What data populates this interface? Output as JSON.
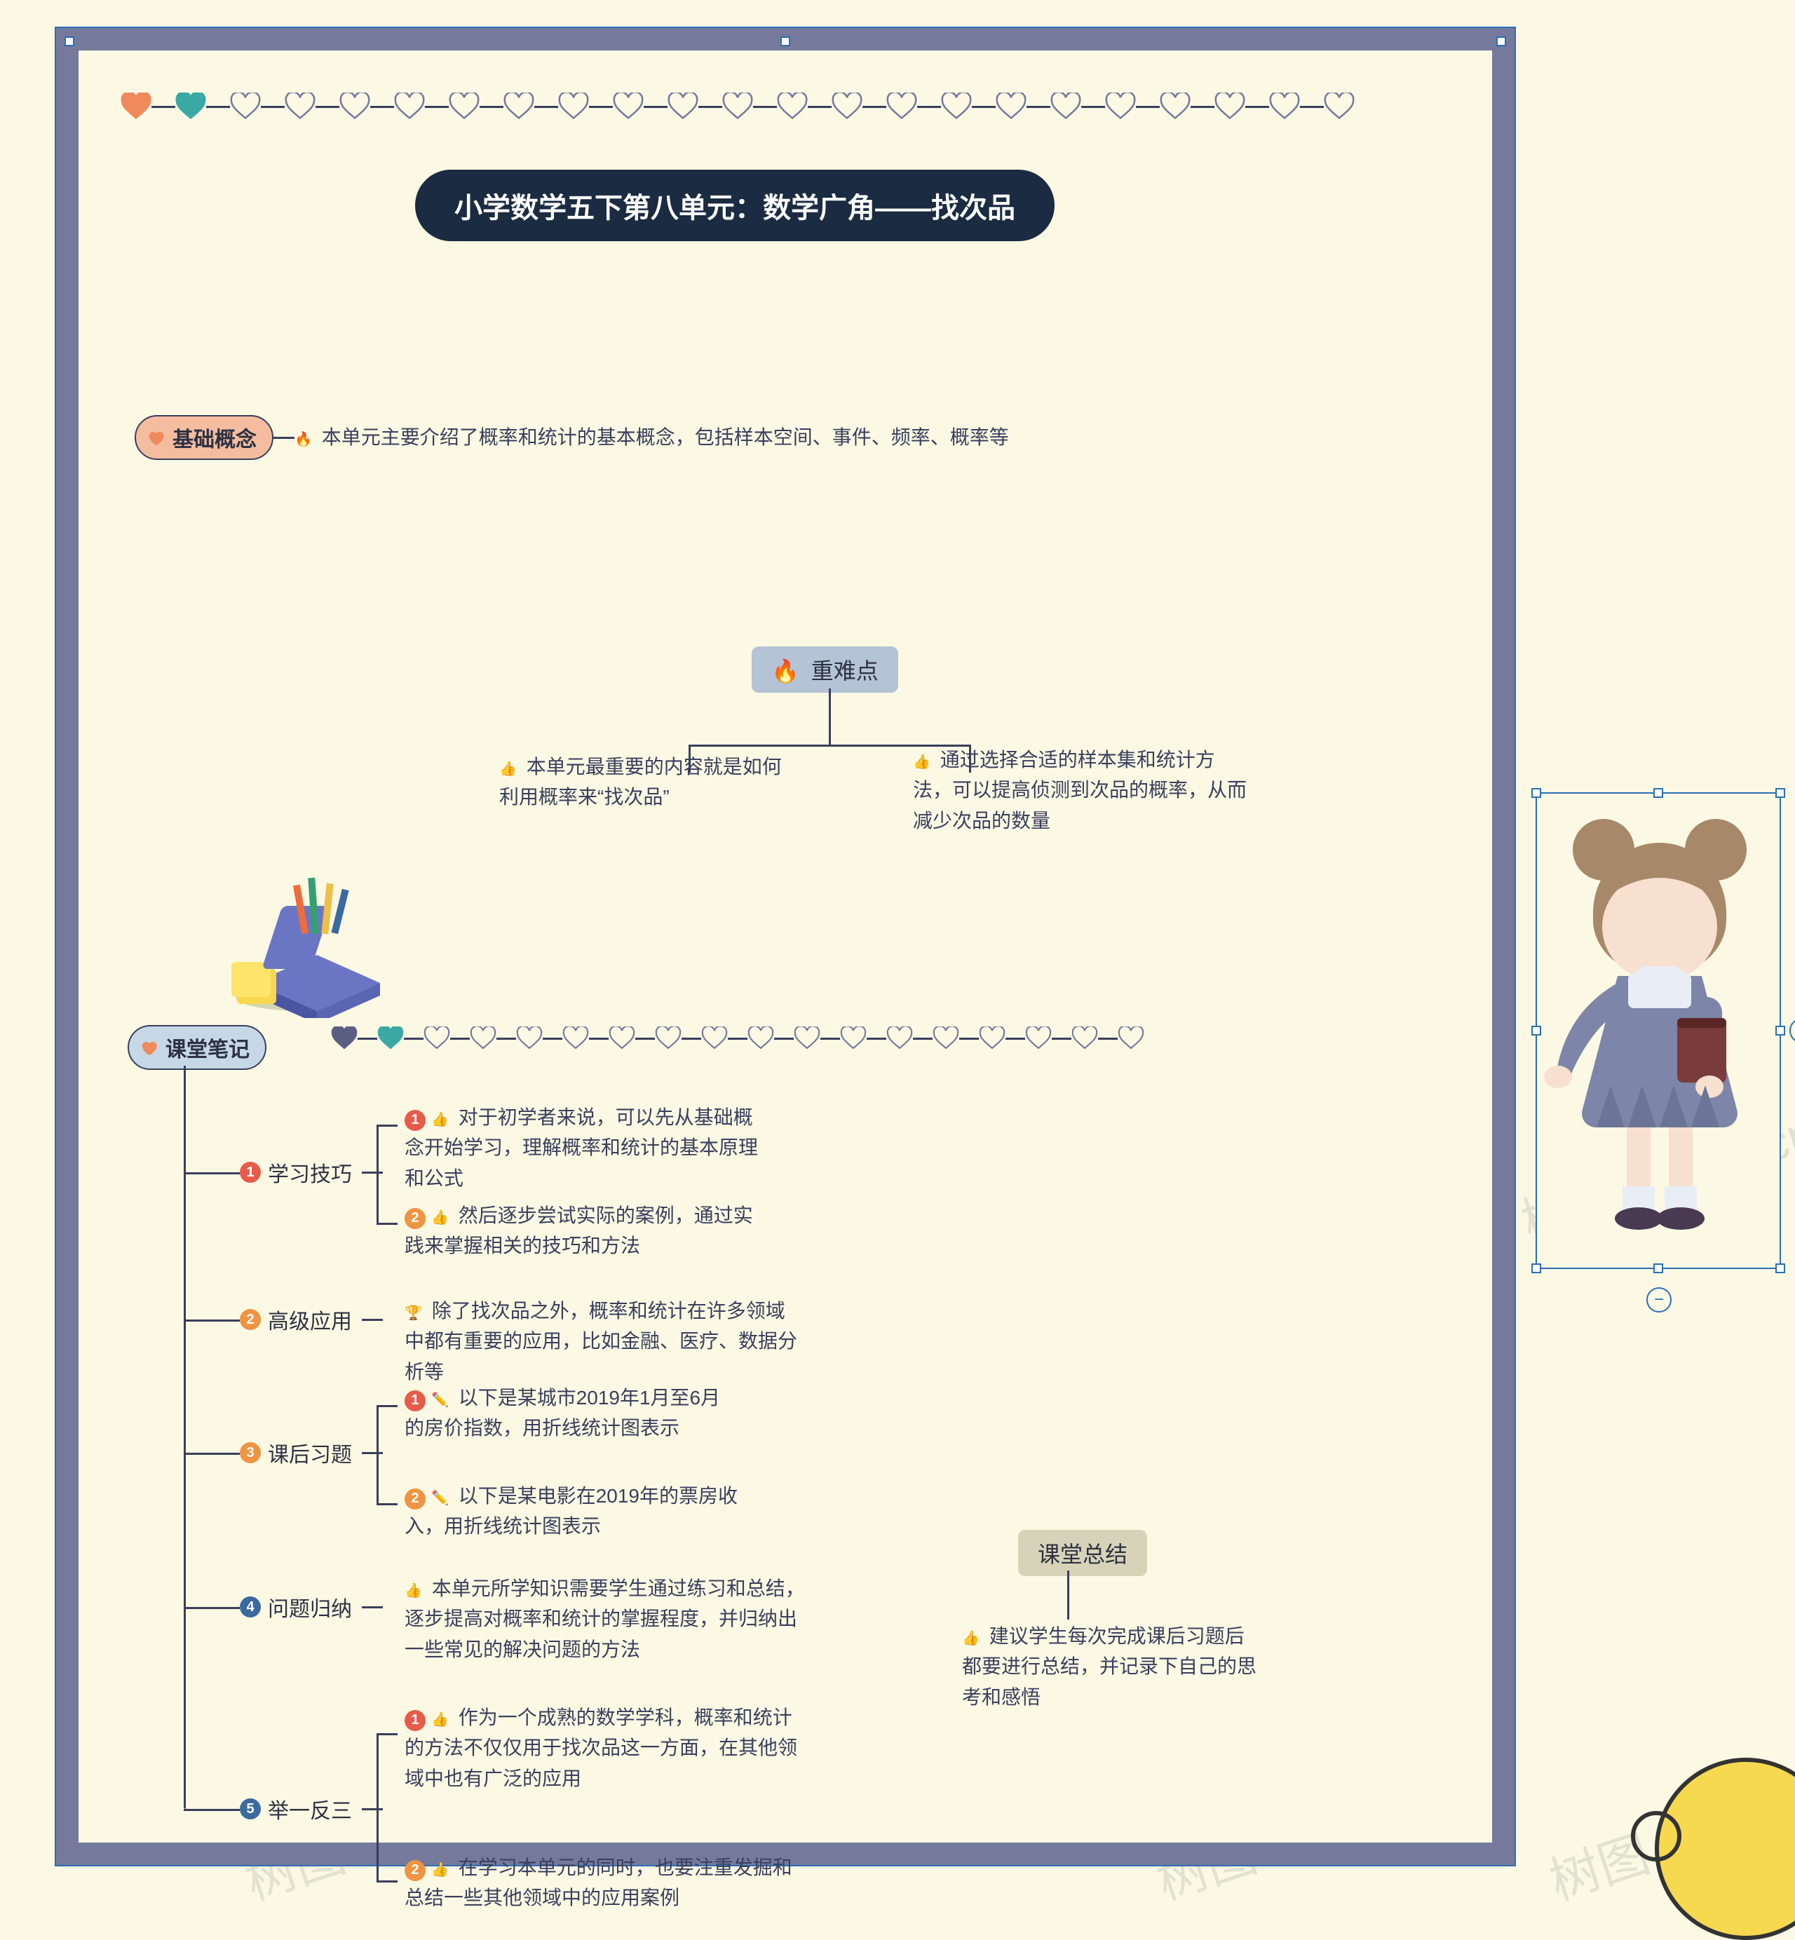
{
  "colors": {
    "page_bg": "#fbf9e4",
    "frame": "#757a9c",
    "stroke": "#3a3f5c",
    "selection": "#2a6fb5",
    "title_bg": "#1a2b42",
    "title_fg": "#ffffff",
    "pill_orange": "#f4bda0",
    "pill_blue": "#c6d8e6",
    "pill_blue2": "#bcd3df",
    "tile_blue": "#b4c3d6",
    "tile_olive": "#d6d3b9",
    "heart_fill": "#fbf9e4",
    "heart_outline": "#757a9c",
    "heart_orange": "#f08a5d",
    "heart_teal": "#3aa9a4",
    "heart_navy": "#5a5f82",
    "badge_red": "#e85b4a",
    "badge_orange": "#ef9442",
    "badge_blue": "#3b6aa0",
    "thumb": "#f6c38a",
    "flame": "#ef6b3a",
    "trophy": "#efbf49",
    "pencil": "#efbf49",
    "corner_yellow": "#f6d94f"
  },
  "watermark_text": "树图 shutu.cn",
  "title": "小学数学五下第八单元：数学广角——找次品",
  "sections": {
    "basic": {
      "label": "基础概念",
      "leaf": "本单元主要介绍了概率和统计的基本概念，包括样本空间、事件、频率、概率等"
    },
    "keypoints": {
      "label": "重难点",
      "left": "本单元最重要的内容就是如何利用概率来“找次品”",
      "right": "通过选择合适的样本集和统计方法，可以提高侦测到次品的概率，从而减少次品的数量"
    },
    "notes_label": "课堂笔记",
    "study": {
      "label": "学习技巧",
      "items": [
        "对于初学者来说，可以先从基础概念开始学习，理解概率和统计的基本原理和公式",
        "然后逐步尝试实际的案例，通过实践来掌握相关的技巧和方法"
      ]
    },
    "advanced": {
      "label": "高级应用",
      "leaf": "除了找次品之外，概率和统计在许多领域中都有重要的应用，比如金融、医疗、数据分析等"
    },
    "homework": {
      "label": "课后习题",
      "items": [
        "以下是某城市2019年1月至6月的房价指数，用折线统计图表示",
        "以下是某电影在2019年的票房收入，用折线统计图表示"
      ]
    },
    "summarize": {
      "label": "问题归纳",
      "leaf": "本单元所学知识需要学生通过练习和总结，逐步提高对概率和统计的掌握程度，并归纳出一些常见的解决问题的方法"
    },
    "extend": {
      "label": "举一反三",
      "items": [
        "作为一个成熟的数学学科，概率和统计的方法不仅仅用于找次品这一方面，在其他领域中也有广泛的应用",
        "在学习本单元的同时，也要注重发掘和总结一些其他领域中的应用案例"
      ]
    },
    "class_summary": {
      "label": "课堂总结",
      "leaf": "建议学生每次完成课后习题后都要进行总结，并记录下自己的思考和感悟"
    }
  },
  "heart_rows": {
    "top": {
      "count": 23,
      "orange_index": 0,
      "teal_index": 1
    },
    "notes": {
      "count": 18,
      "navy_index": 0,
      "teal_index": 1
    }
  },
  "controls": {
    "plus": "+",
    "minus": "−"
  }
}
